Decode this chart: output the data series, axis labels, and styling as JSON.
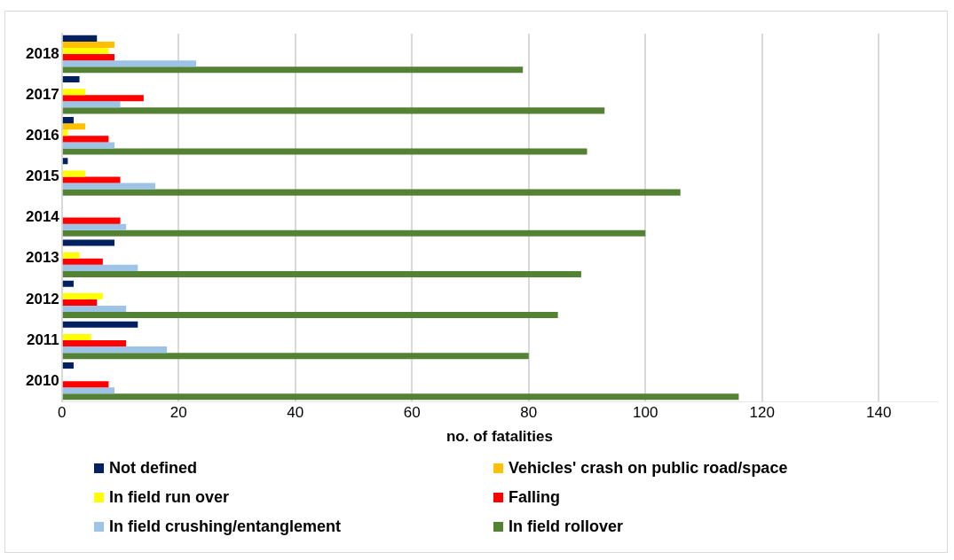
{
  "chart_data": {
    "type": "bar",
    "orientation": "horizontal",
    "xlabel": "no. of fatalities",
    "categories": [
      "2018",
      "2017",
      "2016",
      "2015",
      "2014",
      "2013",
      "2012",
      "2011",
      "2010"
    ],
    "series": [
      {
        "name": "Not defined",
        "color": "#002060",
        "values": [
          6,
          3,
          2,
          1,
          null,
          9,
          2,
          13,
          2
        ]
      },
      {
        "name": "Vehicles' crash on public road/space",
        "color": "#ffc000",
        "values": [
          9,
          null,
          4,
          null,
          null,
          null,
          null,
          null,
          null
        ]
      },
      {
        "name": "In field run over",
        "color": "#ffff00",
        "values": [
          8,
          4,
          1,
          4,
          null,
          3,
          7,
          5,
          null
        ]
      },
      {
        "name": "Falling",
        "color": "#ff0000",
        "values": [
          9,
          14,
          8,
          10,
          10,
          7,
          6,
          11,
          8
        ]
      },
      {
        "name": "In field crushing/entanglement",
        "color": "#9dc3e6",
        "values": [
          23,
          10,
          9,
          16,
          11,
          13,
          11,
          18,
          9
        ]
      },
      {
        "name": "In field rollover",
        "color": "#548235",
        "values": [
          79,
          93,
          90,
          106,
          100,
          89,
          85,
          80,
          116
        ]
      }
    ],
    "xlim": [
      0,
      150
    ],
    "xticks": [
      0,
      20,
      40,
      60,
      80,
      100,
      120,
      140
    ],
    "grid": "x",
    "legend": "bottom"
  }
}
